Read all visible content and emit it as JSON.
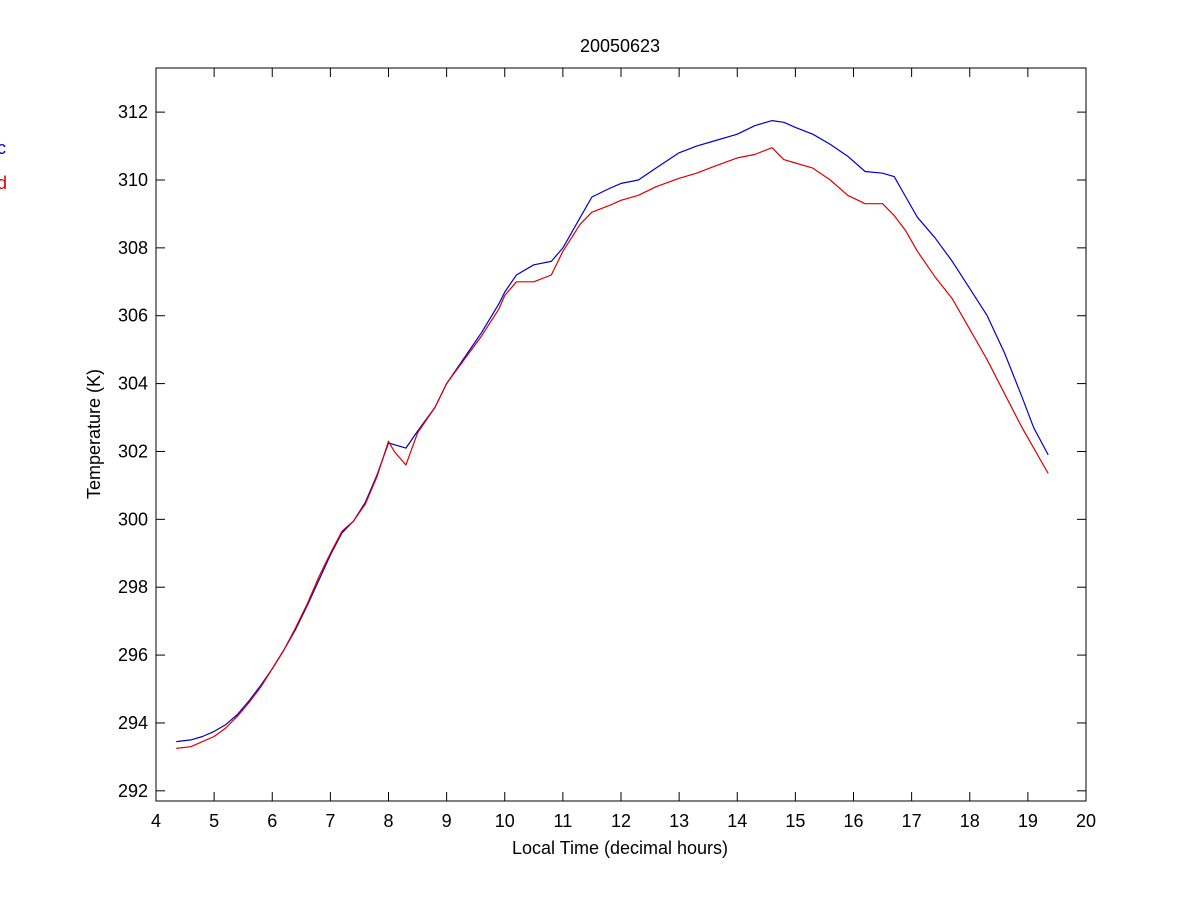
{
  "chart_data": {
    "type": "line",
    "title": "20050623",
    "xlabel": "Local Time (decimal hours)",
    "ylabel": "Temperature (K)",
    "xlim": [
      4,
      20
    ],
    "ylim": [
      291.7,
      313.3
    ],
    "xticks": [
      4,
      5,
      6,
      7,
      8,
      9,
      10,
      11,
      12,
      13,
      14,
      15,
      16,
      17,
      18,
      19,
      20
    ],
    "yticks": [
      292,
      294,
      296,
      298,
      300,
      302,
      304,
      306,
      308,
      310,
      312
    ],
    "grid": false,
    "legend_position": "left, partially cut off",
    "series": [
      {
        "name": "c",
        "color": "#0000cc",
        "x": [
          4.35,
          4.6,
          4.8,
          5.0,
          5.2,
          5.4,
          5.6,
          5.8,
          6.0,
          6.2,
          6.4,
          6.6,
          6.8,
          7.0,
          7.2,
          7.4,
          7.6,
          7.8,
          8.0,
          8.1,
          8.3,
          8.5,
          8.8,
          9.0,
          9.3,
          9.6,
          9.9,
          10.0,
          10.2,
          10.5,
          10.8,
          11.0,
          11.3,
          11.5,
          11.8,
          12.0,
          12.3,
          12.6,
          13.0,
          13.3,
          13.6,
          14.0,
          14.3,
          14.6,
          14.8,
          15.0,
          15.3,
          15.6,
          15.9,
          16.2,
          16.5,
          16.7,
          16.9,
          17.1,
          17.4,
          17.7,
          18.0,
          18.3,
          18.6,
          18.9,
          19.1,
          19.35
        ],
        "y": [
          293.45,
          293.5,
          293.6,
          293.75,
          293.95,
          294.25,
          294.65,
          295.1,
          295.6,
          296.15,
          296.75,
          297.45,
          298.2,
          298.95,
          299.6,
          299.95,
          300.5,
          301.3,
          302.25,
          302.2,
          302.1,
          302.6,
          303.3,
          304.0,
          304.75,
          305.5,
          306.35,
          306.7,
          307.2,
          307.5,
          307.6,
          308.0,
          308.9,
          309.5,
          309.75,
          309.9,
          310.0,
          310.35,
          310.8,
          311.0,
          311.15,
          311.35,
          311.6,
          311.75,
          311.7,
          311.55,
          311.35,
          311.05,
          310.7,
          310.25,
          310.2,
          310.1,
          309.5,
          308.9,
          308.3,
          307.6,
          306.8,
          306.0,
          304.9,
          303.6,
          302.7,
          301.9
        ]
      },
      {
        "name": "d",
        "color": "#dd0000",
        "x": [
          4.35,
          4.6,
          4.8,
          5.0,
          5.2,
          5.4,
          5.6,
          5.8,
          6.0,
          6.2,
          6.4,
          6.6,
          6.8,
          7.0,
          7.2,
          7.4,
          7.6,
          7.8,
          8.0,
          8.1,
          8.3,
          8.5,
          8.8,
          9.0,
          9.3,
          9.6,
          9.9,
          10.0,
          10.2,
          10.5,
          10.8,
          11.0,
          11.3,
          11.5,
          11.8,
          12.0,
          12.3,
          12.6,
          13.0,
          13.3,
          13.6,
          14.0,
          14.3,
          14.6,
          14.8,
          15.0,
          15.3,
          15.6,
          15.9,
          16.2,
          16.5,
          16.7,
          16.9,
          17.1,
          17.4,
          17.7,
          18.0,
          18.3,
          18.6,
          18.9,
          19.1,
          19.35
        ],
        "y": [
          293.25,
          293.3,
          293.45,
          293.6,
          293.85,
          294.2,
          294.6,
          295.05,
          295.6,
          296.15,
          296.8,
          297.5,
          298.3,
          299.0,
          299.65,
          299.95,
          300.45,
          301.25,
          302.3,
          302.0,
          301.6,
          302.55,
          303.3,
          304.0,
          304.7,
          305.4,
          306.2,
          306.6,
          307.0,
          307.0,
          307.2,
          307.9,
          308.7,
          309.05,
          309.25,
          309.4,
          309.55,
          309.8,
          310.05,
          310.2,
          310.4,
          310.65,
          310.75,
          310.95,
          310.6,
          310.5,
          310.35,
          310.0,
          309.55,
          309.3,
          309.3,
          308.95,
          308.5,
          307.9,
          307.15,
          306.5,
          305.6,
          304.7,
          303.7,
          302.7,
          302.1,
          301.35
        ]
      }
    ]
  }
}
